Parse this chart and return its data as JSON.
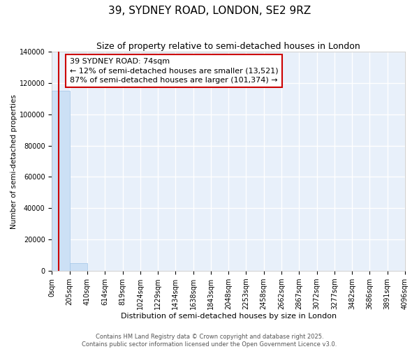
{
  "title": "39, SYDNEY ROAD, LONDON, SE2 9RZ",
  "subtitle": "Size of property relative to semi-detached houses in London",
  "xlabel": "Distribution of semi-detached houses by size in London",
  "ylabel": "Number of semi-detached properties",
  "bar_color": "#cce0f5",
  "bar_edge_color": "#a0c4e8",
  "background_color": "#e8f0fa",
  "grid_color": "#ffffff",
  "red_line_color": "#cc0000",
  "annotation_text": "39 SYDNEY ROAD: 74sqm\n← 12% of semi-detached houses are smaller (13,521)\n87% of semi-detached houses are larger (101,374) →",
  "annotation_box_color": "#cc0000",
  "property_size": 74,
  "bin_edges": [
    0,
    205,
    410,
    614,
    819,
    1024,
    1229,
    1434,
    1638,
    1843,
    2048,
    2253,
    2458,
    2662,
    2867,
    3072,
    3277,
    3482,
    3686,
    3891,
    4096
  ],
  "bin_labels": [
    "0sqm",
    "205sqm",
    "410sqm",
    "614sqm",
    "819sqm",
    "1024sqm",
    "1229sqm",
    "1434sqm",
    "1638sqm",
    "1843sqm",
    "2048sqm",
    "2253sqm",
    "2458sqm",
    "2662sqm",
    "2867sqm",
    "3072sqm",
    "3277sqm",
    "3482sqm",
    "3686sqm",
    "3891sqm",
    "4096sqm"
  ],
  "bar_heights": [
    114895,
    4756,
    110,
    45,
    20,
    10,
    5,
    3,
    2,
    1,
    1,
    0,
    0,
    0,
    0,
    0,
    0,
    0,
    0,
    0
  ],
  "ylim": [
    0,
    140000
  ],
  "yticks": [
    0,
    20000,
    40000,
    60000,
    80000,
    100000,
    120000,
    140000
  ],
  "footer_line1": "Contains HM Land Registry data © Crown copyright and database right 2025.",
  "footer_line2": "Contains public sector information licensed under the Open Government Licence v3.0.",
  "title_fontsize": 11,
  "subtitle_fontsize": 9,
  "annotation_fontsize": 8,
  "ylabel_fontsize": 7.5,
  "xlabel_fontsize": 8,
  "tick_fontsize": 7,
  "footer_fontsize": 6
}
